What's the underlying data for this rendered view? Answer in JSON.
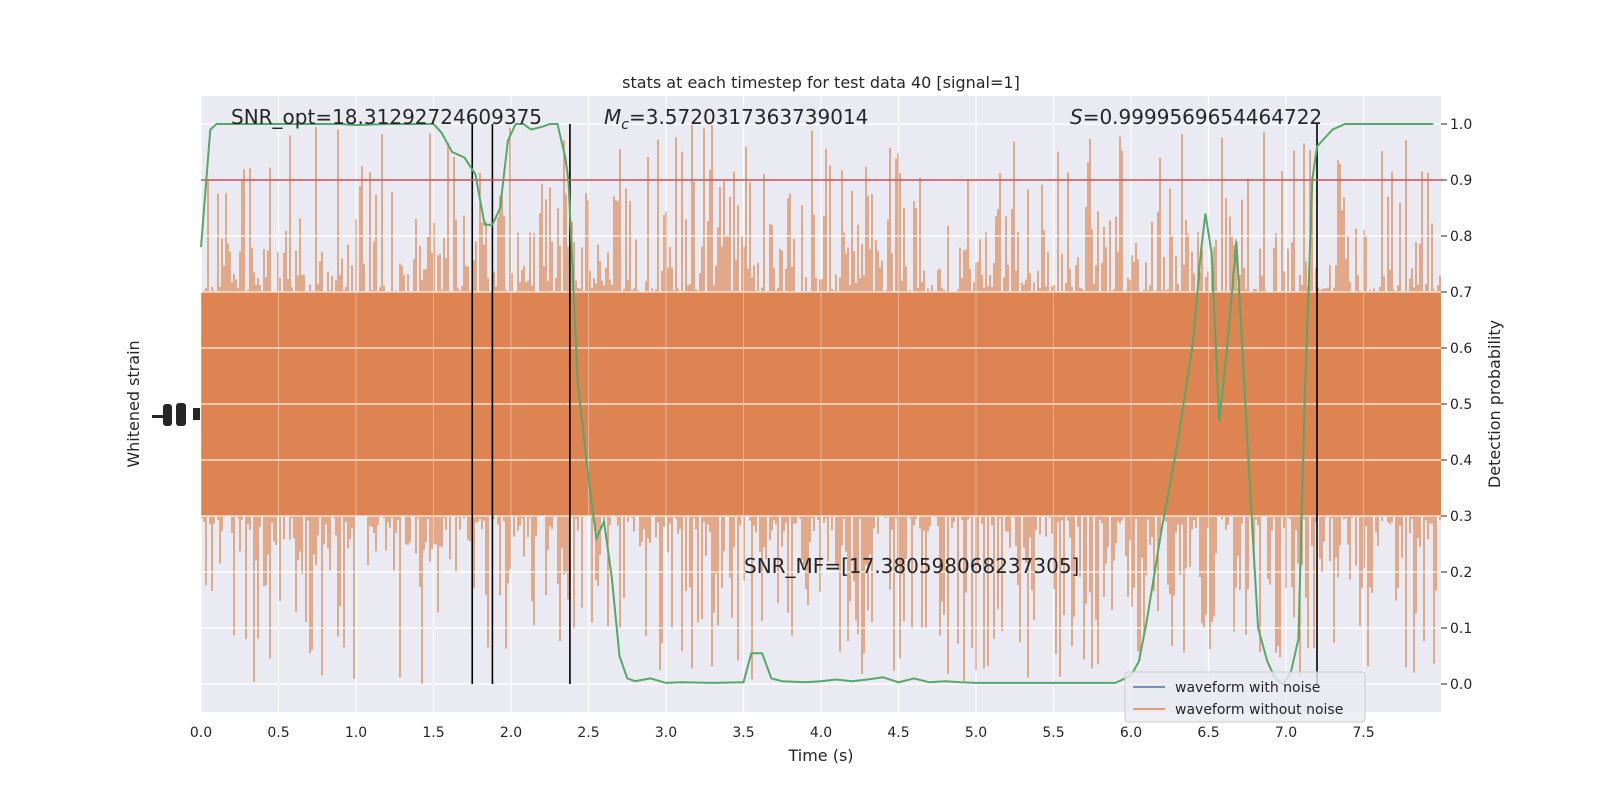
{
  "chart_data": {
    "type": "line",
    "title": "stats at each timestep for test data 40 [signal=1]",
    "xlabel": "Time (s)",
    "ylabel_left": "Whitened strain",
    "ylabel_right": "Detection probability",
    "xlim": [
      0,
      8
    ],
    "ylim_right": [
      -0.05,
      1.05
    ],
    "x_ticks": [
      "0.0",
      "0.5",
      "1.0",
      "1.5",
      "2.0",
      "2.5",
      "3.0",
      "3.5",
      "4.0",
      "4.5",
      "5.0",
      "5.5",
      "6.0",
      "6.5",
      "7.0",
      "7.5"
    ],
    "y_ticks_right": [
      "0.0",
      "0.1",
      "0.2",
      "0.3",
      "0.4",
      "0.5",
      "0.6",
      "0.7",
      "0.8",
      "0.9",
      "1.0"
    ],
    "grid": true,
    "threshold": {
      "value": 0.9,
      "color": "#c44e52"
    },
    "vertical_markers": [
      1.75,
      1.88,
      2.38,
      7.2
    ],
    "annotations": {
      "snr_opt": "SNR_opt=18.31292724609375",
      "mc_prefix": "M",
      "mc_sub": "c",
      "mc_value": "=3.5720317363739014",
      "s_prefix": "S",
      "s_value": "=0.9999569654464722",
      "snr_mf": "SNR_MF=[17.380598068237305]"
    },
    "legend": {
      "placement": "bottom-right",
      "entries": [
        {
          "label": "waveform with noise",
          "color": "#4c72b0"
        },
        {
          "label": "waveform without noise",
          "color": "#dd8452"
        }
      ]
    },
    "strain_band": {
      "color": "#dd8452",
      "core_low": 0.3,
      "core_high": 0.7,
      "spike_low_min": 0.0,
      "spike_high_max": 1.0
    },
    "series": [
      {
        "name": "Detection probability",
        "color": "#55a868",
        "x": [
          0.0,
          0.06,
          0.1,
          0.2,
          0.3,
          0.5,
          0.7,
          0.9,
          1.0,
          1.2,
          1.4,
          1.5,
          1.55,
          1.62,
          1.7,
          1.77,
          1.83,
          1.88,
          1.93,
          1.98,
          2.03,
          2.08,
          2.13,
          2.2,
          2.25,
          2.3,
          2.35,
          2.37,
          2.43,
          2.49,
          2.55,
          2.6,
          2.65,
          2.7,
          2.75,
          2.8,
          2.9,
          3.0,
          3.1,
          3.3,
          3.5,
          3.55,
          3.62,
          3.68,
          3.75,
          3.9,
          4.0,
          4.1,
          4.2,
          4.3,
          4.4,
          4.5,
          4.6,
          4.7,
          4.8,
          4.9,
          5.0,
          5.3,
          5.6,
          5.9,
          6.0,
          6.05,
          6.1,
          6.2,
          6.3,
          6.4,
          6.45,
          6.48,
          6.52,
          6.57,
          6.62,
          6.68,
          6.72,
          6.77,
          6.82,
          6.88,
          6.93,
          6.98,
          7.03,
          7.08,
          7.12,
          7.17,
          7.2,
          7.25,
          7.3,
          7.38,
          7.5,
          7.7,
          7.95
        ],
        "y": [
          0.78,
          0.99,
          1.0,
          1.0,
          1.0,
          1.0,
          1.0,
          1.0,
          0.998,
          1.0,
          1.0,
          1.0,
          0.985,
          0.95,
          0.94,
          0.91,
          0.82,
          0.82,
          0.85,
          0.97,
          1.0,
          1.0,
          0.99,
          0.995,
          1.0,
          1.0,
          0.94,
          0.9,
          0.54,
          0.39,
          0.26,
          0.29,
          0.19,
          0.05,
          0.01,
          0.005,
          0.01,
          0.002,
          0.003,
          0.002,
          0.003,
          0.055,
          0.055,
          0.01,
          0.005,
          0.003,
          0.005,
          0.008,
          0.005,
          0.008,
          0.012,
          0.003,
          0.01,
          0.003,
          0.005,
          0.003,
          0.002,
          0.002,
          0.002,
          0.002,
          0.015,
          0.04,
          0.11,
          0.28,
          0.43,
          0.61,
          0.77,
          0.84,
          0.77,
          0.47,
          0.6,
          0.79,
          0.59,
          0.34,
          0.1,
          0.04,
          0.01,
          0.0,
          0.02,
          0.08,
          0.5,
          0.9,
          0.96,
          0.975,
          0.99,
          1.0,
          1.0,
          1.0,
          1.0
        ]
      }
    ]
  }
}
